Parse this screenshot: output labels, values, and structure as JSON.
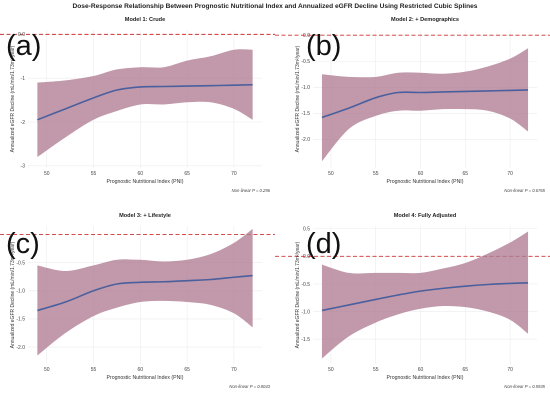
{
  "title": "Dose-Response Relationship Between Prognostic Nutritional Index and Annualized eGFR Decline Using Restricted Cubic Splines",
  "colors": {
    "ci_fill": "#b07c92",
    "curve": "#4a5f9e",
    "refline": "#cc3333",
    "grid": "#ececec"
  },
  "chart_data": [
    {
      "type": "line",
      "panel_label": "(a)",
      "title": "Model 1: Crude",
      "xlabel": "Prognostic Nutritional Index (PNI)",
      "ylabel": "Annualized eGFR Decline (mL/min/1.73m²/year)",
      "xlim": [
        48,
        73
      ],
      "ylim": [
        -3.05,
        0.1
      ],
      "xticks": [
        50,
        55,
        60,
        65,
        70
      ],
      "yticks": [
        0,
        -1,
        -2,
        -3
      ],
      "ytick_labels": [
        "0.0",
        "-1",
        "-2",
        "-3"
      ],
      "reference_line_y": 0,
      "annotation": "Non-linear P = 0.296",
      "grid": true,
      "x": [
        49,
        52,
        55,
        57.5,
        60,
        62.5,
        65,
        67.5,
        70,
        72
      ],
      "y": [
        -1.95,
        -1.7,
        -1.45,
        -1.27,
        -1.2,
        -1.19,
        -1.18,
        -1.17,
        -1.16,
        -1.15
      ],
      "lower": [
        -2.8,
        -2.35,
        -1.95,
        -1.75,
        -1.6,
        -1.6,
        -1.55,
        -1.55,
        -1.7,
        -1.95
      ],
      "upper": [
        -1.1,
        -1.05,
        -0.95,
        -0.8,
        -0.75,
        -0.75,
        -0.6,
        -0.5,
        -0.35,
        -0.35
      ]
    },
    {
      "type": "line",
      "panel_label": "(b)",
      "title": "Model 2: + Demographics",
      "xlabel": "Prognostic Nutritional Index (PNI)",
      "ylabel": "Annualized eGFR Decline (mL/min/1.73m²/year)",
      "xlim": [
        48,
        73
      ],
      "ylim": [
        -2.55,
        0.1
      ],
      "xticks": [
        50,
        55,
        60,
        65,
        70
      ],
      "yticks": [
        0,
        -0.5,
        -1,
        -1.5,
        -2
      ],
      "ytick_labels": [
        "0.0",
        "-0.5",
        "-1.0",
        "-1.5",
        "-2.0"
      ],
      "reference_line_y": 0,
      "annotation": "Non-linear P = 0.6765",
      "grid": true,
      "x": [
        49,
        52,
        55,
        57.5,
        60,
        62.5,
        65,
        67.5,
        70,
        72
      ],
      "y": [
        -1.58,
        -1.4,
        -1.2,
        -1.1,
        -1.1,
        -1.09,
        -1.08,
        -1.07,
        -1.06,
        -1.05
      ],
      "lower": [
        -2.42,
        -1.8,
        -1.55,
        -1.45,
        -1.45,
        -1.42,
        -1.42,
        -1.45,
        -1.6,
        -1.85
      ],
      "upper": [
        -0.75,
        -0.8,
        -0.8,
        -0.72,
        -0.72,
        -0.74,
        -0.7,
        -0.6,
        -0.45,
        -0.25
      ]
    },
    {
      "type": "line",
      "panel_label": "(c)",
      "title": "Model 3: + Lifestyle",
      "xlabel": "Prognostic Nutritional Index (PNI)",
      "ylabel": "Annualized eGFR Decline (mL/min/1.73m²/year)",
      "xlim": [
        48,
        73
      ],
      "ylim": [
        -2.3,
        0.15
      ],
      "xticks": [
        50,
        55,
        60,
        65,
        70
      ],
      "yticks": [
        -0.5,
        -1,
        -1.5,
        -2
      ],
      "ytick_labels": [
        "-0.5",
        "-1.0",
        "-1.5",
        "-2.0"
      ],
      "reference_line_y": 0,
      "annotation": "Non-linear P = 0.8043",
      "grid": true,
      "x": [
        49,
        52,
        55,
        57.5,
        60,
        62.5,
        65,
        67.5,
        70,
        72
      ],
      "y": [
        -1.35,
        -1.2,
        -1.0,
        -0.88,
        -0.85,
        -0.84,
        -0.82,
        -0.8,
        -0.76,
        -0.73
      ],
      "lower": [
        -2.15,
        -1.75,
        -1.45,
        -1.3,
        -1.2,
        -1.18,
        -1.2,
        -1.25,
        -1.4,
        -1.65
      ],
      "upper": [
        -0.55,
        -0.65,
        -0.55,
        -0.45,
        -0.45,
        -0.48,
        -0.45,
        -0.35,
        -0.15,
        0.1
      ]
    },
    {
      "type": "line",
      "panel_label": "(d)",
      "title": "Model 4: Fully Adjusted",
      "xlabel": "Prognostic Nutritional Index (PNI)",
      "ylabel": "Annualized eGFR Decline (mL/min/1.73m²/year)",
      "xlim": [
        48,
        73
      ],
      "ylim": [
        -1.95,
        0.55
      ],
      "xticks": [
        50,
        55,
        60,
        65,
        70
      ],
      "yticks": [
        0.5,
        0,
        -0.5,
        -1,
        -1.5
      ],
      "ytick_labels": [
        "0.5",
        "0.0",
        "-0.5",
        "-1.0",
        "-1.5"
      ],
      "reference_line_y": 0,
      "annotation": "Non-linear P = 0.5935",
      "grid": true,
      "x": [
        49,
        52,
        55,
        57.5,
        60,
        62.5,
        65,
        67.5,
        70,
        72
      ],
      "y": [
        -0.98,
        -0.88,
        -0.78,
        -0.7,
        -0.63,
        -0.58,
        -0.54,
        -0.51,
        -0.49,
        -0.48
      ],
      "lower": [
        -1.85,
        -1.45,
        -1.2,
        -1.05,
        -0.95,
        -0.9,
        -0.92,
        -1.0,
        -1.15,
        -1.4
      ],
      "upper": [
        -0.15,
        -0.3,
        -0.3,
        -0.3,
        -0.3,
        -0.22,
        -0.12,
        0.05,
        0.25,
        0.45
      ]
    }
  ]
}
